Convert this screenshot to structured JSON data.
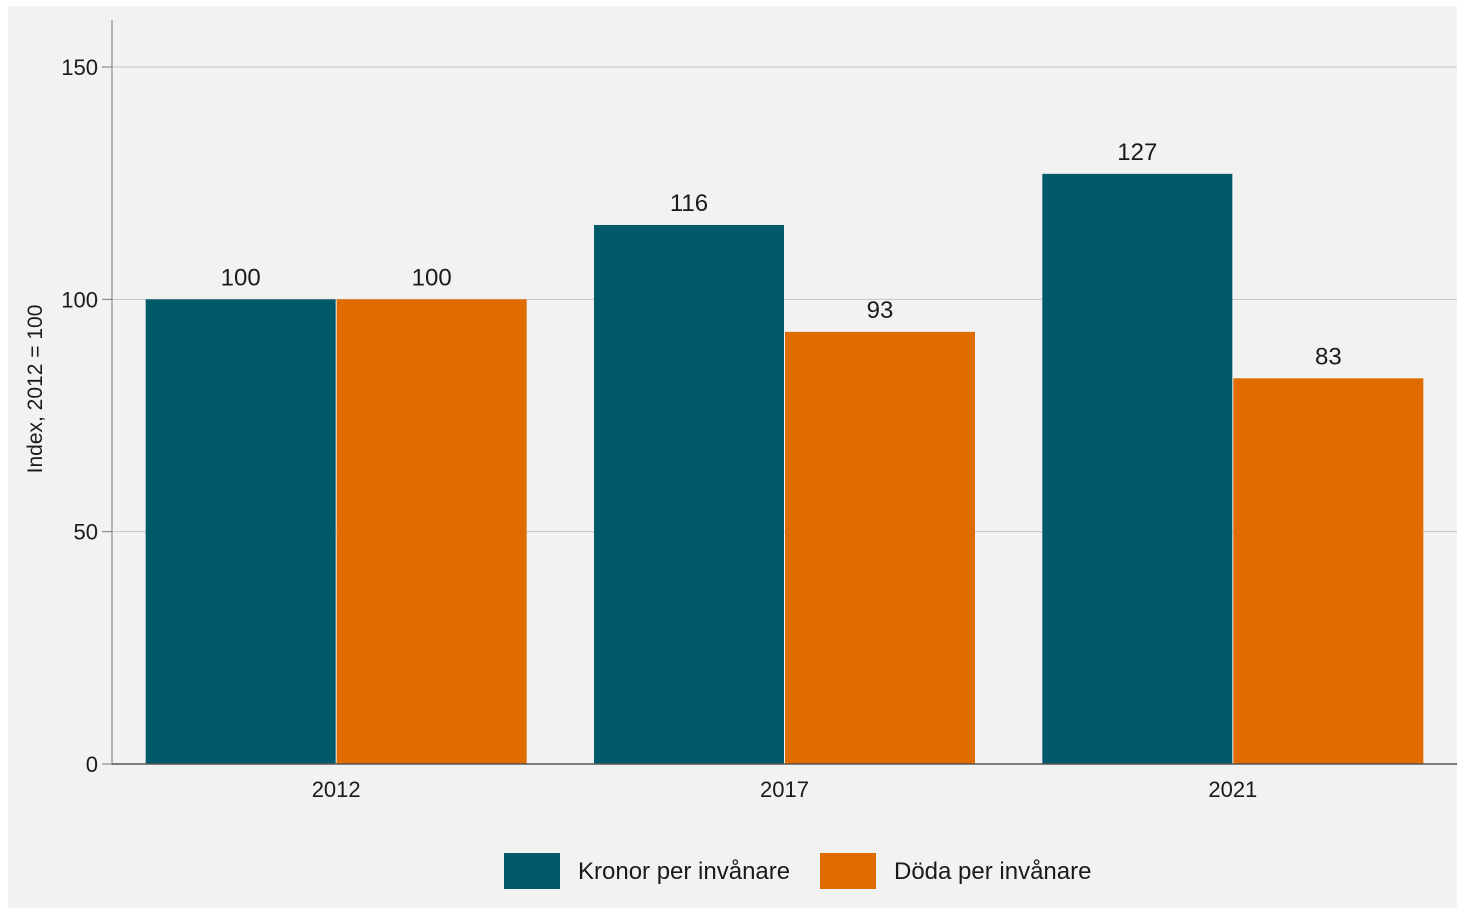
{
  "chart_data": {
    "type": "bar",
    "categories": [
      "2012",
      "2017",
      "2021"
    ],
    "series": [
      {
        "name": "Kronor per invånare",
        "values": [
          100,
          116,
          127
        ],
        "color": "#005a6a"
      },
      {
        "name": "Döda per invånare",
        "values": [
          100,
          93,
          83
        ],
        "color": "#e06c00"
      }
    ],
    "data_labels": [
      [
        "100",
        "116",
        "127"
      ],
      [
        "100",
        "93",
        "83"
      ]
    ],
    "ylabel": "Index, 2012 = 100",
    "ylim": [
      0,
      160
    ],
    "yticks": [
      "0",
      "50",
      "100",
      "150"
    ],
    "ytick_values": [
      0,
      50,
      100,
      150
    ],
    "grid": true,
    "legend_position": "bottom-center"
  }
}
